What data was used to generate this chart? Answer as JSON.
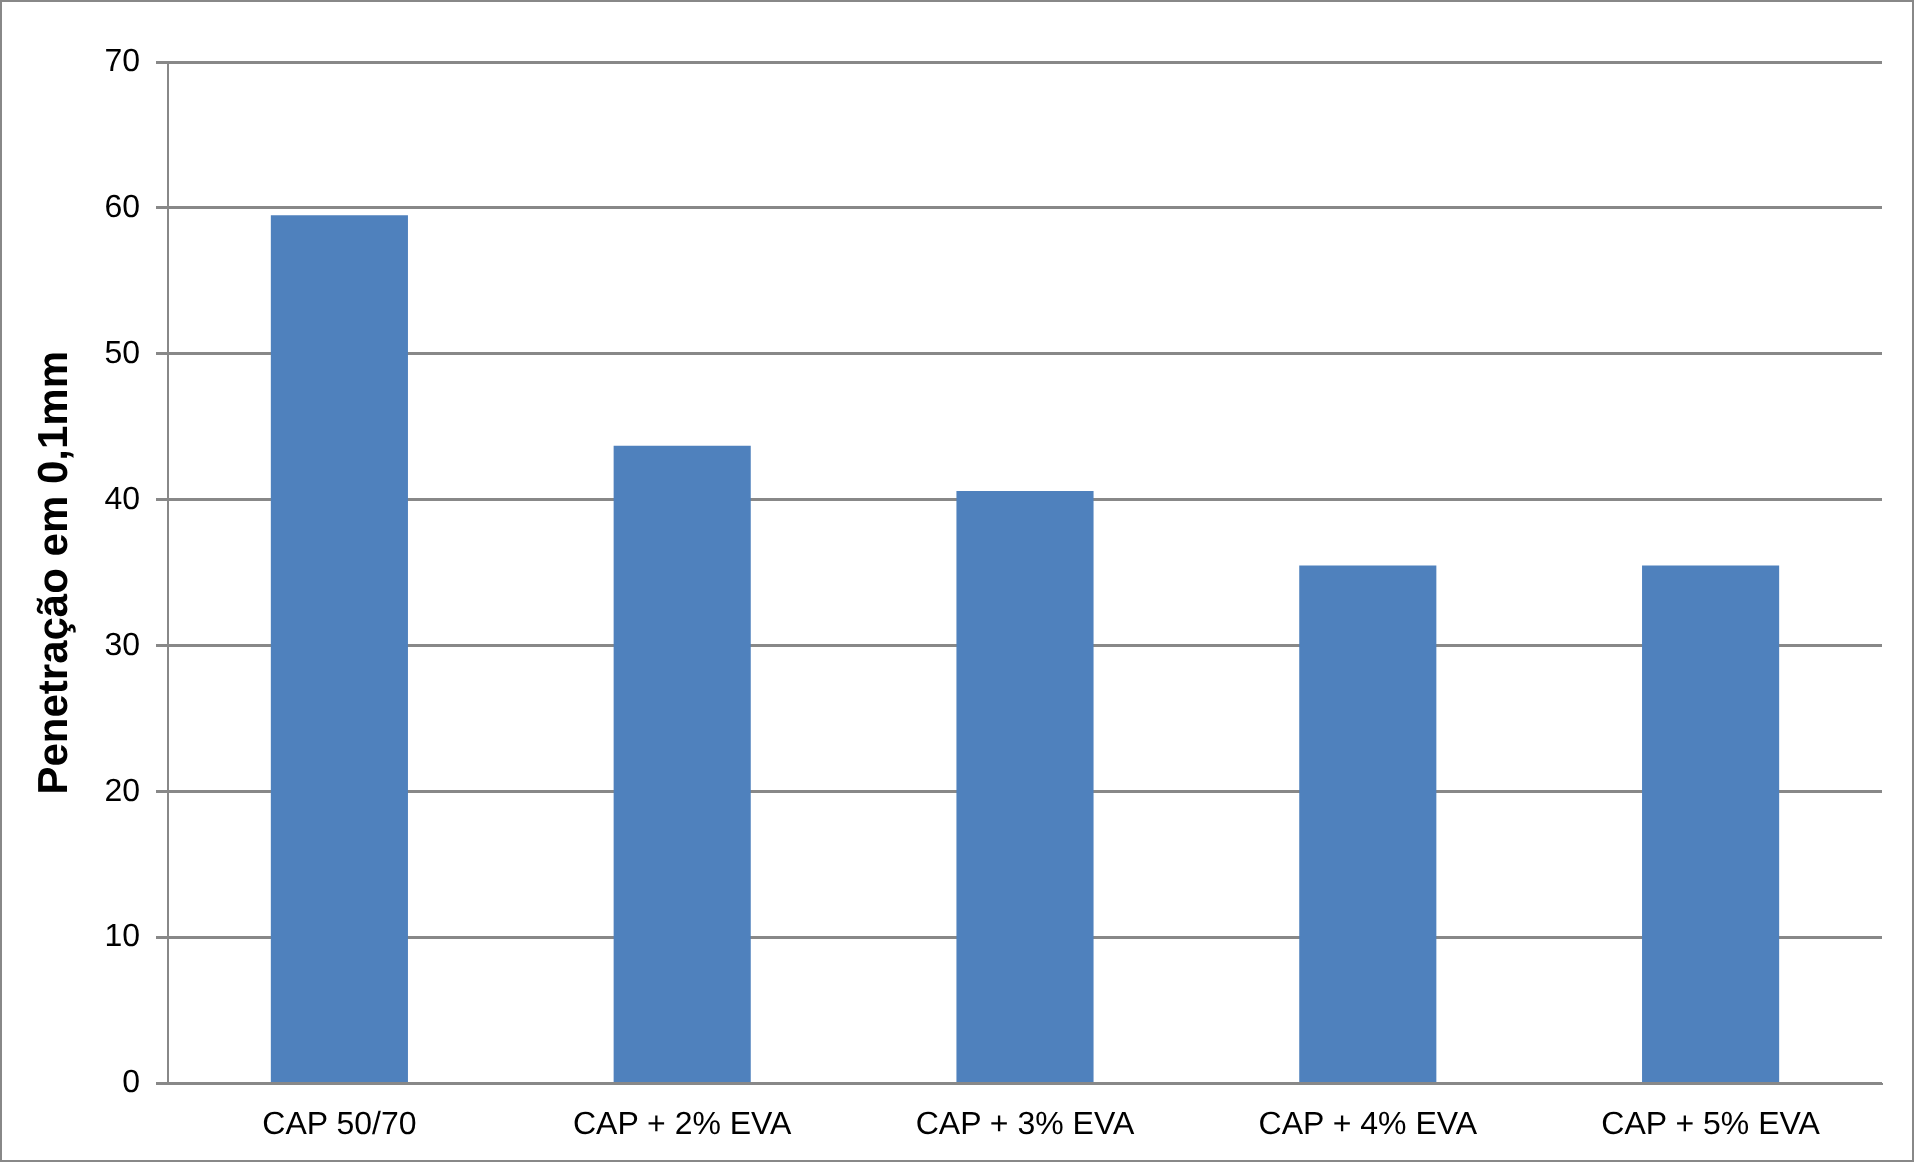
{
  "chart_data": {
    "type": "bar",
    "ylabel": "Penetração em 0,1mm",
    "categories": [
      "CAP 50/70",
      "CAP + 2% EVA",
      "CAP + 3% EVA",
      "CAP + 4% EVA",
      "CAP + 5% EVA"
    ],
    "values": [
      59.5,
      43.7,
      40.6,
      35.5,
      35.5
    ],
    "color": "#4f81bd",
    "ylim": [
      0,
      70
    ],
    "yticks": [
      0,
      10,
      20,
      30,
      40,
      50,
      60,
      70
    ],
    "grid": "y",
    "legend": false
  }
}
